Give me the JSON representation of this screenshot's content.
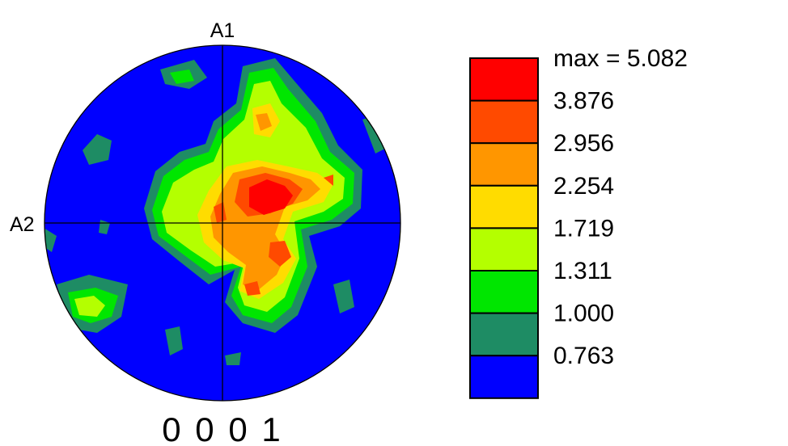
{
  "chart_data": {
    "type": "heatmap",
    "subtype": "pole-figure",
    "title": "0 0 0 1",
    "axis_labels": {
      "top": "A1",
      "left": "A2"
    },
    "legend": {
      "placement": "right",
      "max_label": "max = 5.082",
      "max_value": 5.082,
      "levels": [
        {
          "label": "3.876",
          "value": 3.876,
          "color": "#ff0000"
        },
        {
          "label": "2.956",
          "value": 2.956,
          "color": "#ff4a00"
        },
        {
          "label": "2.254",
          "value": 2.254,
          "color": "#ff9600"
        },
        {
          "label": "1.719",
          "value": 1.719,
          "color": "#ffdc00"
        },
        {
          "label": "1.311",
          "value": 1.311,
          "color": "#b4ff00"
        },
        {
          "label": "1.000",
          "value": 1.0,
          "color": "#00e600"
        },
        {
          "label": "0.763",
          "value": 0.763,
          "color": "#1e8c64"
        }
      ],
      "base_color": "#0000ff"
    },
    "colors": {
      "background_fill": "#0000ff",
      "outline": "#000000"
    }
  }
}
